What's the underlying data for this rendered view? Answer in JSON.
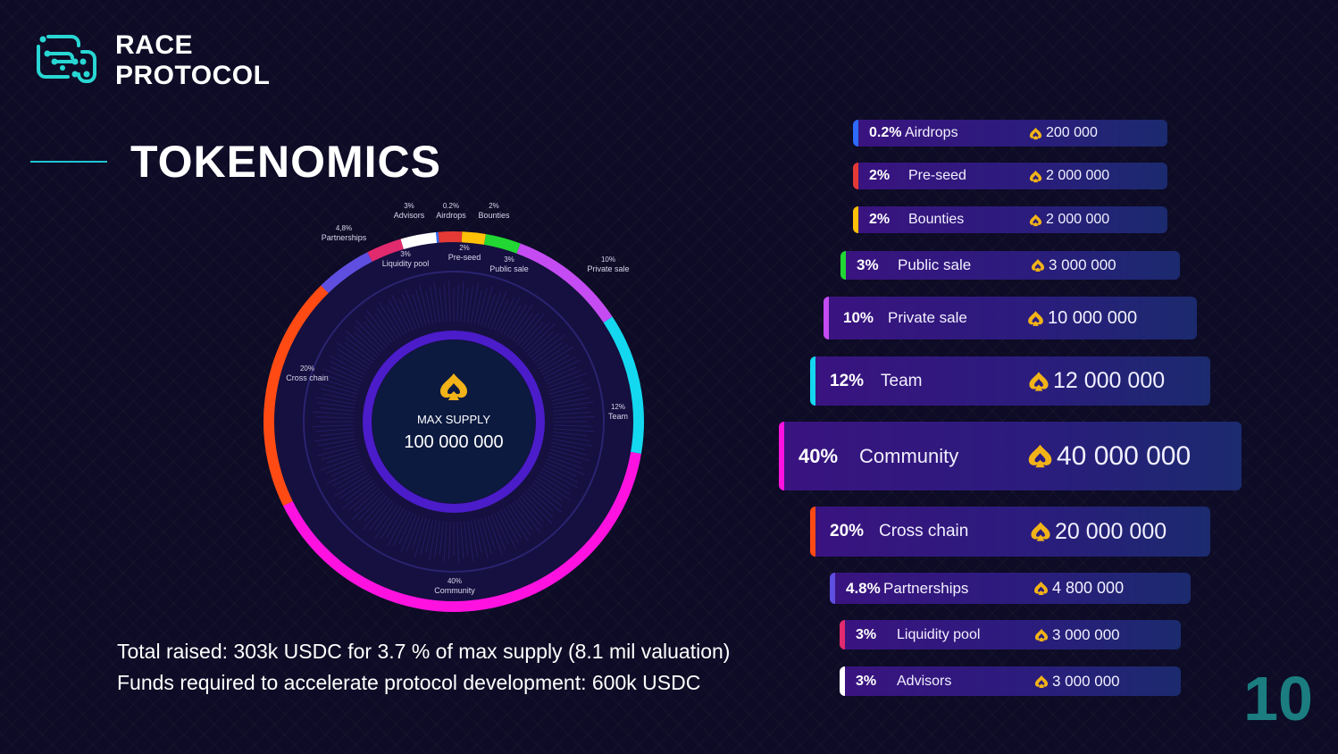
{
  "brand": {
    "line1": "RACE",
    "line2": "PROTOCOL"
  },
  "title": "TOKENOMICS",
  "center": {
    "label": "MAX SUPPLY",
    "value": "100 000 000"
  },
  "footer": {
    "line1": "Total raised: 303k USDC for 3.7 % of max supply (8.1 mil valuation)",
    "line2": "Funds required to accelerate protocol development: 600k USDC"
  },
  "page_number": "10",
  "icons": {
    "token": "token-spade-icon",
    "logo": "circuit-logo-icon"
  },
  "chart_data": {
    "type": "pie",
    "title": "TOKENOMICS",
    "total": 100000000,
    "slices": [
      {
        "pct_label": "0.2%",
        "label": "Airdrops",
        "name": "Airdrops",
        "value": 0.2,
        "amount": "200 000",
        "color": "#2d6bff",
        "chart_pct": "0.2%",
        "chart_name": "Airdrops"
      },
      {
        "pct_label": "2%",
        "label": "Pre-seed",
        "name": "Pre-seed",
        "value": 2,
        "amount": "2 000 000",
        "color": "#e53935",
        "chart_pct": "2%",
        "chart_name": "Pre-seed"
      },
      {
        "pct_label": "2%",
        "label": "Bounties",
        "name": "Bounties",
        "value": 2,
        "amount": "2 000 000",
        "color": "#ffc107",
        "chart_pct": "2%",
        "chart_name": "Bounties"
      },
      {
        "pct_label": "3%",
        "label": "Public sale",
        "name": "Public sale",
        "value": 3,
        "amount": "3 000 000",
        "color": "#22d633",
        "chart_pct": "3%",
        "chart_name": "Public sale"
      },
      {
        "pct_label": "10%",
        "label": "Private sale",
        "name": "Private sale",
        "value": 10,
        "amount": "10 000 000",
        "color": "#c44cf2",
        "chart_pct": "10%",
        "chart_name": "Private sale"
      },
      {
        "pct_label": "12%",
        "label": "Team",
        "name": "Team",
        "value": 12,
        "amount": "12 000 000",
        "color": "#13d8ef",
        "chart_pct": "12%",
        "chart_name": "Team"
      },
      {
        "pct_label": "40%",
        "label": "Community",
        "name": "Community",
        "value": 40,
        "amount": "40 000 000",
        "color": "#ff12e0",
        "chart_pct": "40%",
        "chart_name": "Community"
      },
      {
        "pct_label": "20%",
        "label": "Cross chain",
        "name": "Cross chain",
        "value": 20,
        "amount": "20 000 000",
        "color": "#ff4a14",
        "chart_pct": "20%",
        "chart_name": "Cross chain"
      },
      {
        "pct_label": "4.8%",
        "label": "Partnerships",
        "name": "Partnerships",
        "value": 4.8,
        "amount": "4 800 000",
        "color": "#5f4fe0",
        "chart_pct": "4,8%",
        "chart_name": "Partnerships"
      },
      {
        "pct_label": "3%",
        "label": "Liquidity pool",
        "name": "Liquidity pool",
        "value": 3,
        "amount": "3 000 000",
        "color": "#e22a6f",
        "chart_pct": "3%",
        "chart_name": "Liquidity pool"
      },
      {
        "pct_label": "3%",
        "label": "Advisors",
        "name": "Advisors",
        "value": 3,
        "amount": "3 000 000",
        "color": "#ffffff",
        "chart_pct": "3%",
        "chart_name": "Advisors"
      }
    ]
  }
}
